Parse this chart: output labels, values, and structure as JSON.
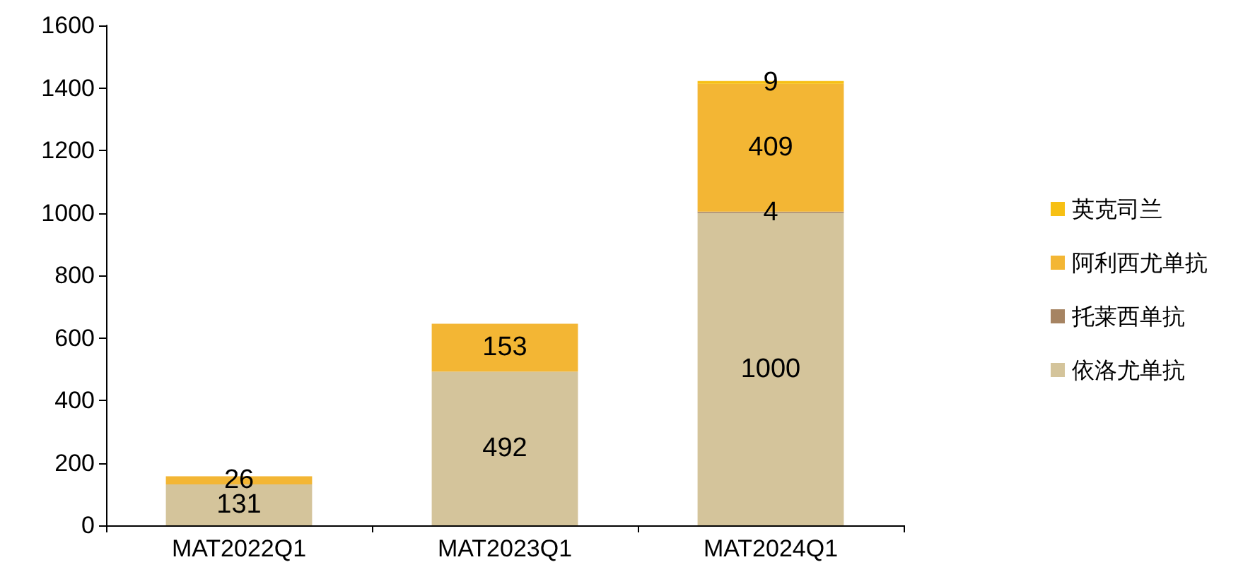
{
  "chart_data": {
    "type": "bar",
    "stacked": true,
    "categories": [
      "MAT2022Q1",
      "MAT2023Q1",
      "MAT2024Q1"
    ],
    "series": [
      {
        "name": "依洛尤单抗",
        "color": "#d4c49b",
        "values": [
          131,
          492,
          1000
        ]
      },
      {
        "name": "托莱西单抗",
        "color": "#a68462",
        "values": [
          null,
          null,
          4
        ]
      },
      {
        "name": "阿利西尤单抗",
        "color": "#f3b634",
        "values": [
          26,
          153,
          409
        ]
      },
      {
        "name": "英克司兰",
        "color": "#f7c014",
        "values": [
          null,
          null,
          9
        ]
      }
    ],
    "ylim": [
      0,
      1600
    ],
    "yticks": [
      0,
      200,
      400,
      600,
      800,
      1000,
      1200,
      1400,
      1600
    ],
    "data_labels": true,
    "grid": false,
    "legend": "right"
  }
}
